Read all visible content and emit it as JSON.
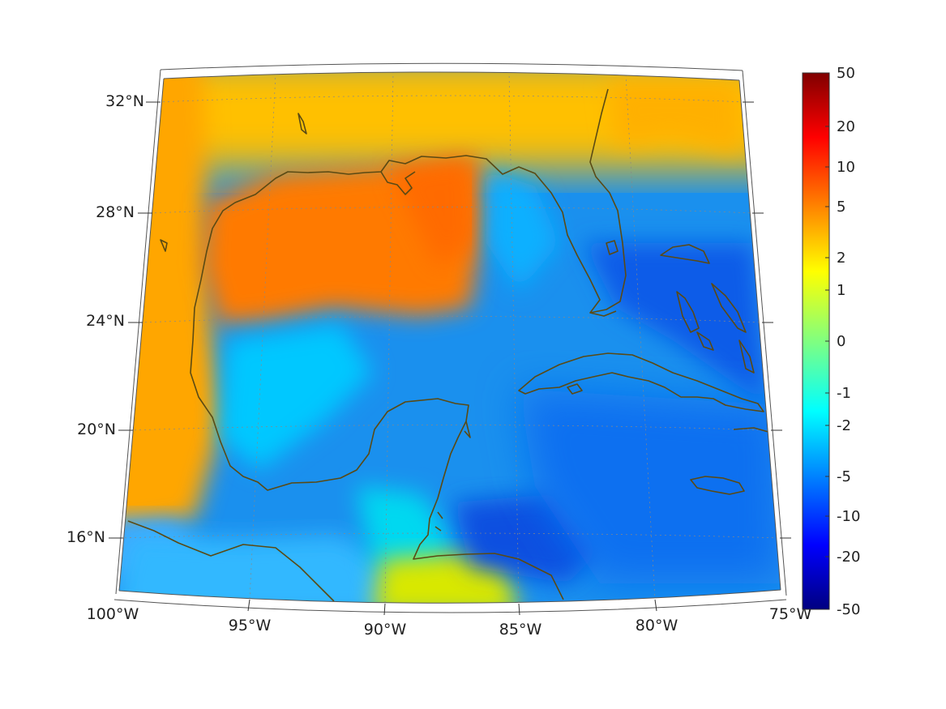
{
  "map": {
    "lat_labels": [
      "32°N",
      "28°N",
      "24°N",
      "20°N",
      "16°N"
    ],
    "lon_labels": [
      "100°W",
      "95°W",
      "90°W",
      "85°W",
      "80°W",
      "75°W"
    ],
    "coast_color": "#5a4a14",
    "frame_color": "#555555",
    "grid_color": "#888888"
  },
  "colorbar": {
    "tick_labels": [
      "50",
      "20",
      "10",
      "5",
      "2",
      "1",
      "0",
      "-1",
      "-2",
      "-5",
      "-10",
      "-20",
      "-50"
    ],
    "colormap": "jet",
    "scale": "symmetric-log"
  }
}
